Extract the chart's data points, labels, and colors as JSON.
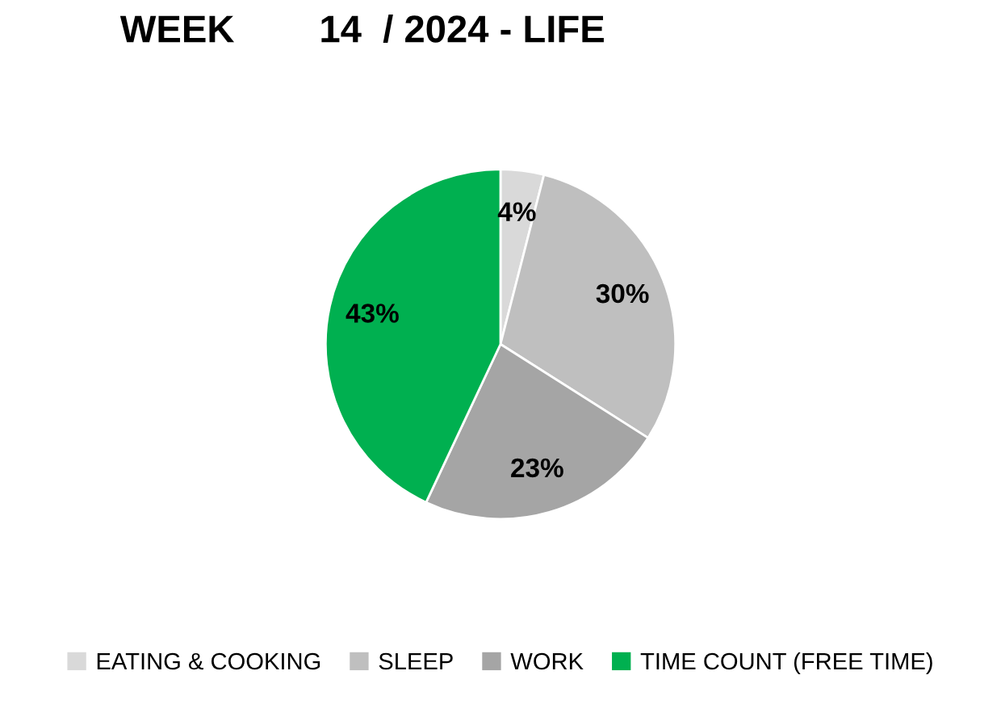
{
  "chart_data": {
    "type": "pie",
    "title": "WEEK        14  / 2024 - LIFE",
    "categories": [
      "EATING & COOKING",
      "SLEEP",
      "WORK",
      "TIME COUNT (FREE TIME)"
    ],
    "values": [
      4,
      30,
      23,
      43
    ],
    "colors": [
      "#d9d9d9",
      "#bfbfbf",
      "#a5a5a5",
      "#00b050"
    ],
    "value_labels": [
      "4%",
      "30%",
      "23%",
      "43%"
    ],
    "legend": "bottom"
  }
}
